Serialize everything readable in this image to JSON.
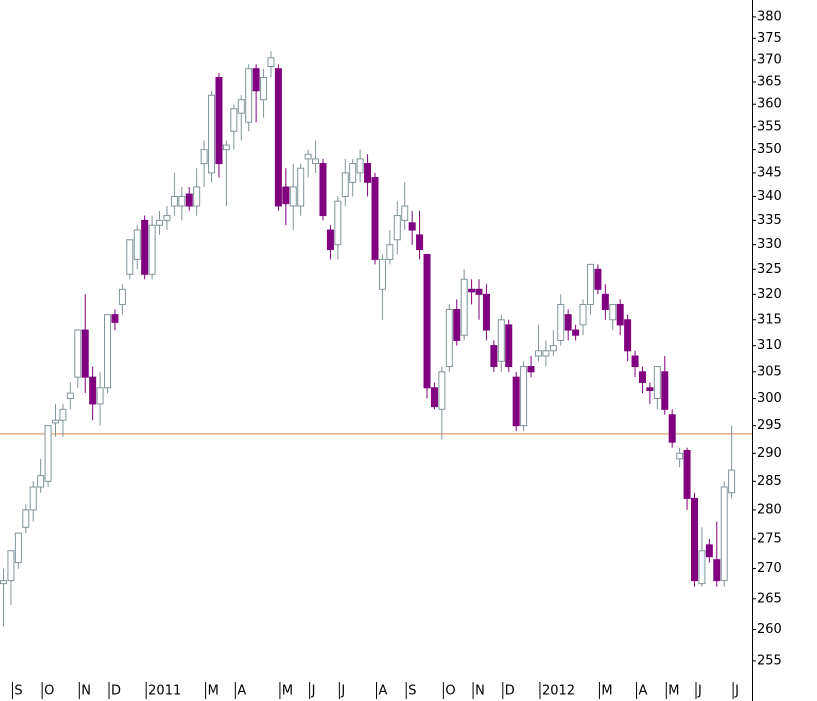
{
  "chart_data": {
    "type": "candlestick",
    "log_y": true,
    "ylim": [
      252,
      384
    ],
    "yticks": [
      255,
      260,
      265,
      270,
      275,
      280,
      285,
      290,
      295,
      300,
      305,
      310,
      315,
      320,
      325,
      330,
      335,
      340,
      345,
      350,
      355,
      360,
      365,
      370,
      375,
      380
    ],
    "xticks": [
      {
        "value": 1,
        "label": "S"
      },
      {
        "value": 5,
        "label": "O"
      },
      {
        "value": 10,
        "label": "N"
      },
      {
        "value": 14,
        "label": "D"
      },
      {
        "value": 19,
        "label": "2011"
      },
      {
        "value": 27,
        "label": "M"
      },
      {
        "value": 31,
        "label": "A"
      },
      {
        "value": 37,
        "label": "M"
      },
      {
        "value": 41,
        "label": "J"
      },
      {
        "value": 45,
        "label": "J"
      },
      {
        "value": 50,
        "label": "A"
      },
      {
        "value": 54,
        "label": "S"
      },
      {
        "value": 59,
        "label": "O"
      },
      {
        "value": 63,
        "label": "N"
      },
      {
        "value": 67,
        "label": "D"
      },
      {
        "value": 72,
        "label": "2012"
      },
      {
        "value": 80,
        "label": "M"
      },
      {
        "value": 85,
        "label": "A"
      },
      {
        "value": 89,
        "label": "M"
      },
      {
        "value": 93,
        "label": "J"
      },
      {
        "value": 98,
        "label": "J"
      }
    ],
    "up_color": "#7f9499",
    "down_color": "#800080",
    "reference_line": {
      "value": 293.5,
      "color": "#e0894a"
    },
    "open": [
      267.5,
      268,
      271,
      277,
      280,
      284,
      285,
      295.5,
      296,
      300,
      304,
      313,
      304,
      299,
      302,
      316,
      318,
      324,
      327,
      335,
      324,
      334,
      335,
      338,
      338,
      340.5,
      338,
      347,
      345,
      366,
      350,
      354,
      358,
      356,
      368,
      361,
      368.5,
      368,
      342,
      338,
      338,
      348,
      347,
      347,
      333,
      330,
      340,
      343,
      345,
      347,
      344,
      321,
      327,
      331,
      335,
      334.5,
      332,
      328,
      302,
      298,
      306,
      317,
      312,
      321,
      321,
      320,
      310,
      307,
      314,
      304,
      295,
      306,
      308,
      308,
      309,
      311,
      316,
      313,
      314,
      318,
      325,
      320,
      315,
      318,
      315,
      308,
      305,
      302,
      300,
      305,
      297,
      289,
      290.5,
      282,
      267.5,
      274,
      271.5,
      268,
      283
    ],
    "high": [
      270,
      273,
      276,
      281,
      285,
      289,
      295,
      299,
      299,
      303,
      313,
      320,
      306,
      305,
      316,
      317,
      322,
      331,
      334,
      336,
      336,
      337,
      338,
      345,
      342,
      342,
      346,
      352,
      363,
      367,
      352,
      360,
      362,
      369,
      369,
      368,
      372,
      369,
      346,
      347,
      347,
      350,
      352,
      348,
      334,
      340,
      348,
      348,
      350,
      349,
      345,
      328,
      333,
      339,
      343,
      337,
      337,
      328,
      303,
      306,
      318,
      319,
      325,
      323,
      323,
      322,
      311,
      316,
      315,
      305,
      307,
      308,
      314,
      311,
      313,
      320,
      317,
      314,
      319,
      326,
      326,
      322,
      318,
      319,
      316,
      309,
      306,
      303,
      306,
      308,
      298,
      291,
      291,
      283,
      277,
      275,
      278,
      285,
      295
    ],
    "low": [
      260.5,
      264,
      270,
      276,
      278,
      283,
      284,
      293,
      293,
      298,
      302,
      301,
      296,
      295,
      301,
      313,
      316,
      323,
      325,
      323,
      323,
      332,
      333,
      336,
      335,
      337,
      336,
      342,
      343,
      344,
      338,
      350,
      352,
      354,
      356,
      357,
      366,
      337,
      334,
      333,
      336,
      344,
      345,
      335,
      327,
      327,
      338,
      340,
      343,
      340,
      326,
      315,
      326,
      328,
      333,
      330,
      327,
      300,
      298,
      292.5,
      305,
      310,
      311,
      318,
      315,
      311,
      305,
      305,
      305,
      294,
      294,
      304,
      307,
      306,
      308,
      310,
      311,
      311,
      312,
      316,
      320,
      315,
      313,
      312,
      307,
      304,
      301,
      299,
      298,
      297,
      291,
      287.5,
      280,
      267,
      267,
      271,
      267,
      267,
      282
    ],
    "close": [
      268,
      273,
      276,
      280,
      284,
      286,
      295,
      296,
      298,
      301,
      313,
      304,
      299,
      302,
      316,
      314.5,
      321,
      331,
      333,
      324,
      334,
      335,
      336,
      340,
      340,
      338,
      342,
      350,
      362,
      347,
      351,
      359,
      361,
      368,
      363,
      366,
      370.5,
      338,
      338.5,
      342,
      346,
      349,
      348,
      336,
      329,
      339,
      345,
      347,
      348,
      343,
      327,
      327,
      330,
      336,
      338,
      333,
      329,
      302,
      298.5,
      305,
      317,
      311,
      323,
      320.5,
      320,
      313,
      306,
      315,
      306,
      295,
      306,
      305,
      309,
      309,
      310,
      318,
      313,
      312,
      318,
      326,
      321,
      317,
      318,
      314,
      309,
      306,
      303,
      301.5,
      306,
      298,
      292,
      290,
      282,
      268,
      273,
      272,
      268,
      284,
      287
    ]
  }
}
